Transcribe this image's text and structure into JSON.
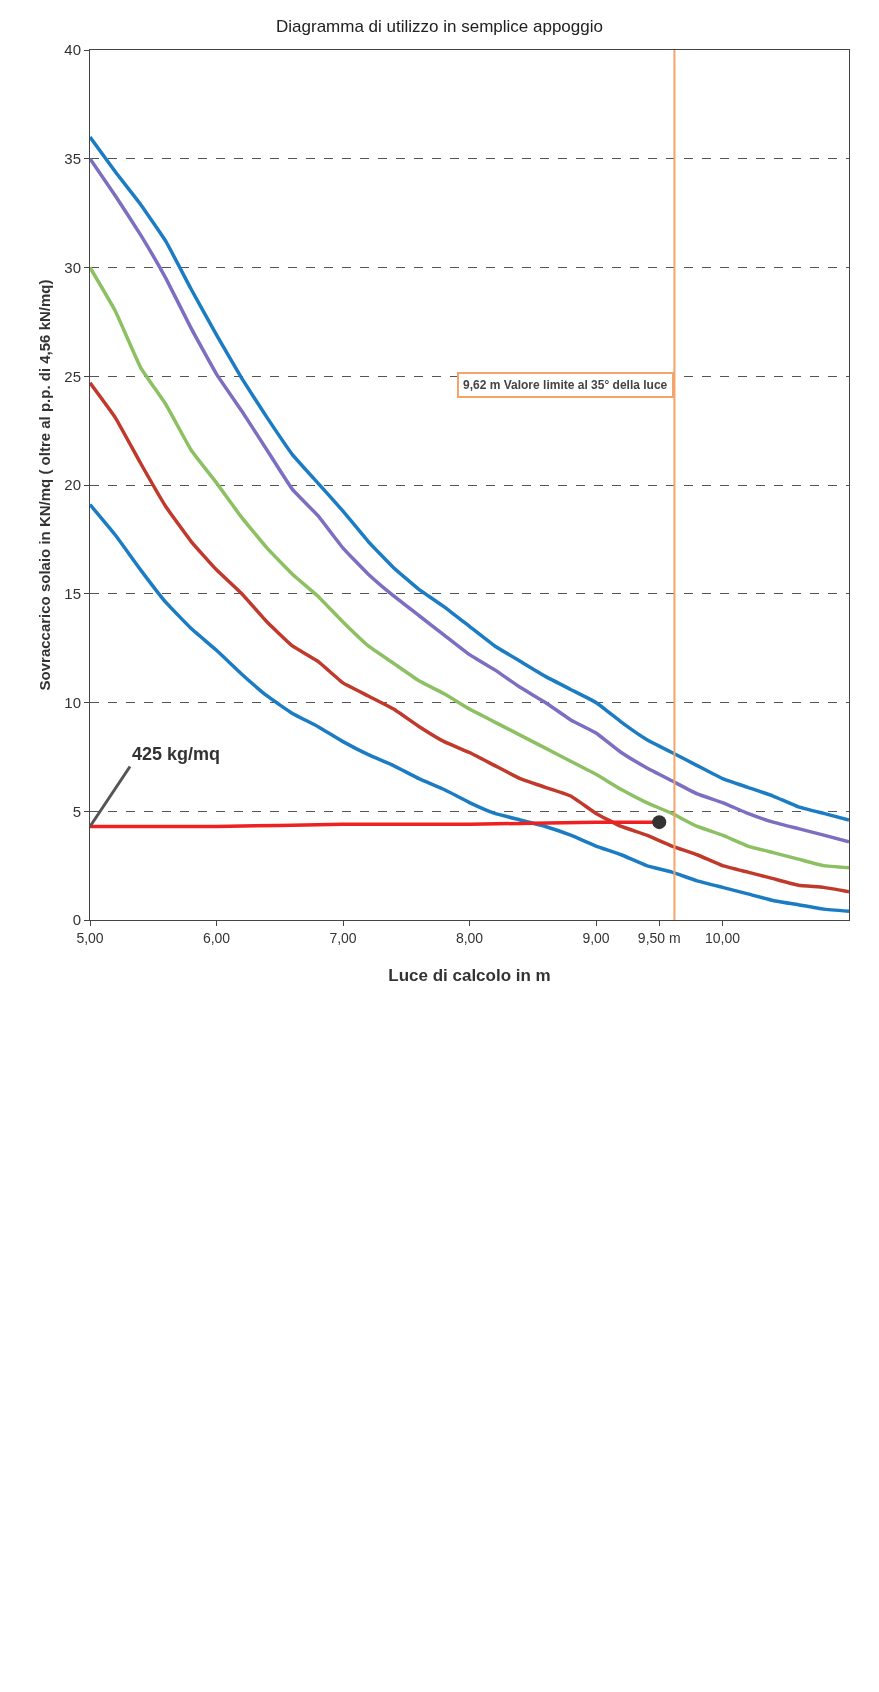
{
  "chart_data": {
    "type": "line",
    "title": "Diagramma di utilizzo in semplice appoggio",
    "xlabel": "Luce di calcolo in m",
    "ylabel": "Sovraccarico solaio in KN/mq ( oltre al p.p. di 4,56 kN/mq)",
    "x": [
      5,
      5.2,
      5.4,
      5.6,
      5.8,
      6,
      6.2,
      6.4,
      6.6,
      6.8,
      7,
      7.2,
      7.4,
      7.6,
      7.8,
      8,
      8.2,
      8.4,
      8.6,
      8.8,
      9,
      9.2,
      9.4,
      9.6,
      9.8,
      10,
      10.2,
      10.4,
      10.6,
      10.8,
      11
    ],
    "series": [
      {
        "color": "#1b7cc4",
        "values": [
          36.0,
          34.4,
          32.9,
          31.2,
          29.0,
          26.9,
          24.9,
          23.1,
          21.4,
          20.1,
          18.8,
          17.4,
          16.2,
          15.2,
          14.4,
          13.5,
          12.6,
          11.9,
          11.2,
          10.6,
          10.0,
          9.1,
          8.3,
          7.7,
          7.1,
          6.5,
          6.1,
          5.7,
          5.2,
          4.9,
          4.6
        ]
      },
      {
        "color": "#7a6fc0",
        "values": [
          35.0,
          33.3,
          31.5,
          29.5,
          27.2,
          25.1,
          23.4,
          21.6,
          19.8,
          18.6,
          17.1,
          15.9,
          14.9,
          14.0,
          13.1,
          12.2,
          11.5,
          10.7,
          10.0,
          9.2,
          8.6,
          7.7,
          7.0,
          6.4,
          5.8,
          5.4,
          4.9,
          4.5,
          4.2,
          3.9,
          3.6
        ]
      },
      {
        "color": "#8cc063",
        "values": [
          30.0,
          28.0,
          25.4,
          23.7,
          21.6,
          20.1,
          18.5,
          17.1,
          15.9,
          14.9,
          13.7,
          12.6,
          11.8,
          11.0,
          10.4,
          9.7,
          9.1,
          8.5,
          7.9,
          7.3,
          6.7,
          6.0,
          5.4,
          4.9,
          4.3,
          3.9,
          3.4,
          3.1,
          2.8,
          2.5,
          2.4
        ]
      },
      {
        "color": "#c0392b",
        "values": [
          24.7,
          23.1,
          21.0,
          19.0,
          17.4,
          16.1,
          15.0,
          13.7,
          12.6,
          11.9,
          10.9,
          10.3,
          9.7,
          8.9,
          8.2,
          7.7,
          7.1,
          6.5,
          6.1,
          5.7,
          4.9,
          4.3,
          3.9,
          3.4,
          3.0,
          2.5,
          2.2,
          1.9,
          1.6,
          1.5,
          1.3
        ]
      },
      {
        "color": "#1b7cc4",
        "values": [
          19.1,
          17.7,
          16.1,
          14.6,
          13.4,
          12.4,
          11.3,
          10.3,
          9.5,
          8.9,
          8.2,
          7.6,
          7.1,
          6.5,
          6.0,
          5.4,
          4.9,
          4.6,
          4.3,
          3.9,
          3.4,
          3.0,
          2.5,
          2.2,
          1.8,
          1.5,
          1.2,
          0.9,
          0.7,
          0.5,
          0.4
        ]
      },
      {
        "color": "#f02020",
        "x": [
          5,
          6,
          7,
          8,
          9,
          9.5
        ],
        "values": [
          4.3,
          4.3,
          4.4,
          4.4,
          4.5,
          4.5
        ]
      },
      {
        "type": "scatter",
        "color": "#333333",
        "marker": "circle",
        "x": [
          9.5
        ],
        "values": [
          4.5
        ]
      }
    ],
    "xlim": [
      5,
      11
    ],
    "xticks": [
      {
        "value": 5,
        "label": "5,00"
      },
      {
        "value": 6,
        "label": "6,00"
      },
      {
        "value": 7,
        "label": "7,00"
      },
      {
        "value": 8,
        "label": "8,00"
      },
      {
        "value": 9,
        "label": "9,00"
      },
      {
        "value": 9.5,
        "label": "9,50 m"
      },
      {
        "value": 10,
        "label": "10,00"
      }
    ],
    "ylim": [
      0,
      40
    ],
    "yticks": [
      0,
      5,
      10,
      15,
      20,
      25,
      30,
      35,
      40
    ],
    "grid": "y",
    "marker": "none",
    "line_style": "solid",
    "ref_lines": [
      {
        "axis": "x",
        "value": 9.62,
        "label": "9,62 m Valore limite al 35° della luce",
        "color": "#f2a46a"
      }
    ],
    "annotations": [
      {
        "text": "425 kg/mq",
        "x": 5,
        "y": 4.3
      }
    ]
  }
}
